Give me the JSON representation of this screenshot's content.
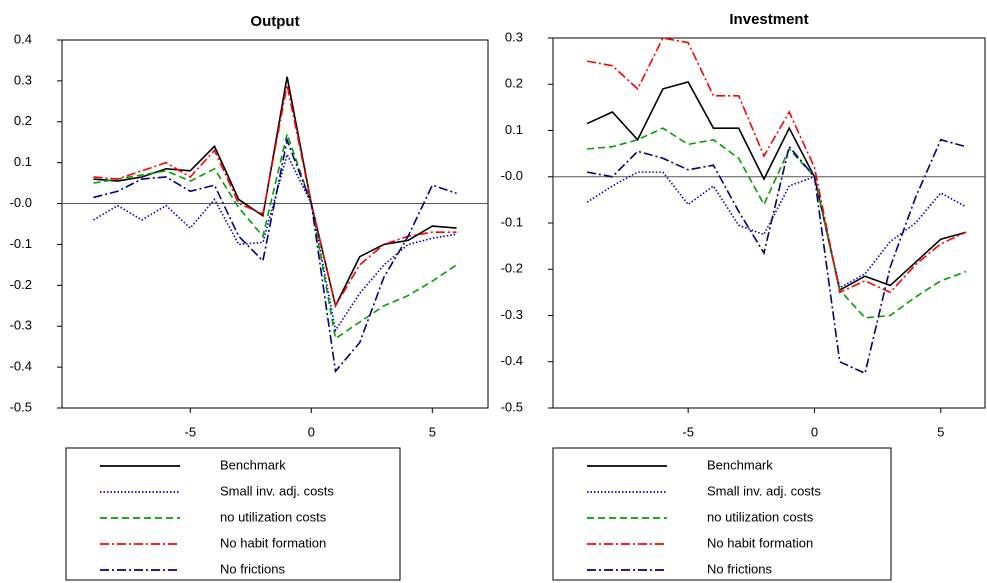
{
  "chart_data": [
    {
      "type": "line",
      "title": "Output",
      "x": [
        -9,
        -8,
        -7,
        -6,
        -5,
        -4,
        -3,
        -2,
        -1,
        0,
        1,
        2,
        3,
        4,
        5,
        6
      ],
      "xlim": [
        -10.3,
        7.3
      ],
      "xticks": [
        -5,
        0,
        5
      ],
      "ylim": [
        -0.5,
        0.4
      ],
      "yticks": [
        -0.5,
        -0.4,
        -0.3,
        -0.2,
        -0.1,
        {
          "value": 0,
          "label": "-0.0"
        },
        0.1,
        0.2,
        0.3,
        0.4
      ],
      "zero_line": true,
      "series": [
        {
          "name": "Benchmark",
          "color": "#000000",
          "dash": "solid",
          "values": [
            0.06,
            0.055,
            0.065,
            0.085,
            0.08,
            0.14,
            0.01,
            -0.03,
            0.31,
            0.0,
            -0.25,
            -0.13,
            -0.1,
            -0.09,
            -0.055,
            -0.06
          ]
        },
        {
          "name": "Small inv. adj. costs",
          "color": "#0000c8",
          "dash": "dotted",
          "values": [
            -0.04,
            -0.005,
            -0.04,
            -0.005,
            -0.06,
            0.01,
            -0.1,
            -0.095,
            0.12,
            0.0,
            -0.31,
            -0.22,
            -0.15,
            -0.1,
            -0.085,
            -0.075
          ]
        },
        {
          "name": "no utilization costs",
          "color": "#00a000",
          "dash": "dashed",
          "values": [
            0.05,
            0.06,
            0.07,
            0.08,
            0.055,
            0.085,
            -0.01,
            -0.08,
            0.17,
            0.0,
            -0.33,
            -0.29,
            -0.25,
            -0.225,
            -0.19,
            -0.15
          ]
        },
        {
          "name": "No habit formation",
          "color": "#ff0000",
          "dash": "dashdot",
          "values": [
            0.065,
            0.06,
            0.08,
            0.1,
            0.065,
            0.13,
            0.0,
            -0.025,
            0.29,
            0.0,
            -0.25,
            -0.15,
            -0.1,
            -0.08,
            -0.07,
            -0.07
          ]
        },
        {
          "name": "No frictions",
          "color": "#000080",
          "dash": "dashdot",
          "values": [
            0.015,
            0.03,
            0.06,
            0.065,
            0.03,
            0.045,
            -0.08,
            -0.14,
            0.155,
            0.0,
            -0.41,
            -0.34,
            -0.18,
            -0.08,
            0.045,
            0.025
          ]
        }
      ]
    },
    {
      "type": "line",
      "title": "Investment",
      "x": [
        -9,
        -8,
        -7,
        -6,
        -5,
        -4,
        -3,
        -2,
        -1,
        0,
        1,
        2,
        3,
        4,
        5,
        6
      ],
      "xlim": [
        -10.35,
        6.75
      ],
      "xticks": [
        -5,
        0,
        5
      ],
      "ylim": [
        -0.5,
        0.3
      ],
      "yticks": [
        -0.5,
        -0.4,
        -0.3,
        -0.2,
        -0.1,
        {
          "value": 0,
          "label": "-0.0"
        },
        0.1,
        0.2,
        0.3
      ],
      "zero_line": true,
      "series": [
        {
          "name": "Benchmark",
          "color": "#000000",
          "dash": "solid",
          "values": [
            0.115,
            0.14,
            0.08,
            0.19,
            0.205,
            0.105,
            0.105,
            -0.005,
            0.105,
            0.0,
            -0.245,
            -0.215,
            -0.235,
            -0.185,
            -0.135,
            -0.12
          ]
        },
        {
          "name": "Small inv. adj. costs",
          "color": "#0000c8",
          "dash": "dotted",
          "values": [
            -0.055,
            -0.02,
            0.01,
            0.01,
            -0.06,
            -0.02,
            -0.105,
            -0.125,
            -0.02,
            0.0,
            -0.24,
            -0.21,
            -0.14,
            -0.1,
            -0.035,
            -0.065
          ]
        },
        {
          "name": "no utilization costs",
          "color": "#00a000",
          "dash": "dashed",
          "values": [
            0.06,
            0.065,
            0.08,
            0.105,
            0.07,
            0.08,
            0.04,
            -0.06,
            0.06,
            0.0,
            -0.245,
            -0.305,
            -0.3,
            -0.26,
            -0.225,
            -0.205
          ]
        },
        {
          "name": "No habit formation",
          "color": "#ff0000",
          "dash": "dashdot",
          "values": [
            0.25,
            0.24,
            0.19,
            0.3,
            0.29,
            0.175,
            0.175,
            0.045,
            0.14,
            0.02,
            -0.25,
            -0.225,
            -0.25,
            -0.19,
            -0.145,
            -0.12
          ]
        },
        {
          "name": "No frictions",
          "color": "#000080",
          "dash": "dashdot",
          "values": [
            0.01,
            0.0,
            0.055,
            0.04,
            0.015,
            0.025,
            -0.075,
            -0.165,
            0.065,
            0.0,
            -0.4,
            -0.425,
            -0.195,
            -0.045,
            0.08,
            0.065
          ]
        }
      ]
    }
  ]
}
